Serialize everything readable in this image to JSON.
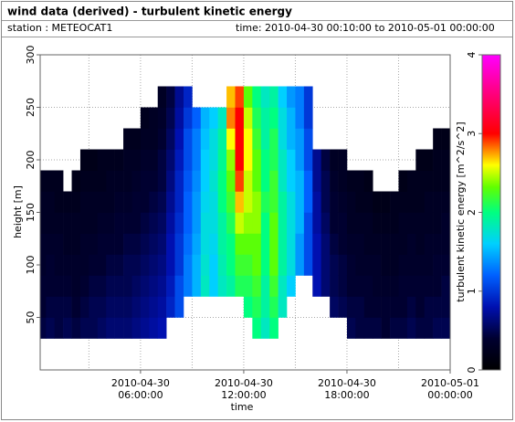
{
  "chart_data": {
    "type": "heatmap",
    "title": "wind data (derived) - turbulent kinetic energy",
    "station": "station : METEOCAT1",
    "period": "time: 2010-04-30 00:10:00 to 2010-05-01 00:00:00",
    "xlabel": "time",
    "ylabel": "height [m]",
    "zlabel": "turbulent kinetic energy [m^2/s^2]",
    "xlim": [
      "2010-04-30 00:10:00",
      "2010-05-01 00:00:00"
    ],
    "xticks": [
      "2010-04-30 06:00:00",
      "2010-04-30 12:00:00",
      "2010-04-30 18:00:00",
      "2010-05-01 00:00:00"
    ],
    "xminor_ticks": [
      "2010-04-30 03:00:00",
      "2010-04-30 09:00:00",
      "2010-04-30 15:00:00",
      "2010-04-30 21:00:00"
    ],
    "ylim": [
      0,
      300
    ],
    "yticks": [
      50,
      100,
      150,
      200,
      250,
      300
    ],
    "zlim": [
      0,
      4
    ],
    "zticks": [
      0,
      1,
      2,
      3,
      4
    ],
    "grid": true,
    "x_bins": [
      "2010-04-30 00:10:00",
      "2010-04-30 00:30:00",
      "2010-04-30 01:00:00",
      "2010-04-30 01:30:00",
      "2010-04-30 02:00:00",
      "2010-04-30 02:30:00",
      "2010-04-30 03:00:00",
      "2010-04-30 03:30:00",
      "2010-04-30 04:00:00",
      "2010-04-30 04:30:00",
      "2010-04-30 05:00:00",
      "2010-04-30 05:30:00",
      "2010-04-30 06:00:00",
      "2010-04-30 06:30:00",
      "2010-04-30 07:00:00",
      "2010-04-30 07:30:00",
      "2010-04-30 08:00:00",
      "2010-04-30 08:30:00",
      "2010-04-30 09:00:00",
      "2010-04-30 09:30:00",
      "2010-04-30 10:00:00",
      "2010-04-30 10:30:00",
      "2010-04-30 11:00:00",
      "2010-04-30 11:30:00",
      "2010-04-30 12:00:00",
      "2010-04-30 12:30:00",
      "2010-04-30 13:00:00",
      "2010-04-30 13:30:00",
      "2010-04-30 14:00:00",
      "2010-04-30 14:30:00",
      "2010-04-30 15:00:00",
      "2010-04-30 15:30:00",
      "2010-04-30 16:00:00",
      "2010-04-30 16:30:00",
      "2010-04-30 17:00:00",
      "2010-04-30 17:30:00",
      "2010-04-30 18:00:00",
      "2010-04-30 18:30:00",
      "2010-04-30 19:00:00",
      "2010-04-30 19:30:00",
      "2010-04-30 20:00:00",
      "2010-04-30 20:30:00",
      "2010-04-30 21:00:00",
      "2010-04-30 21:30:00",
      "2010-04-30 22:00:00",
      "2010-04-30 22:30:00",
      "2010-04-30 23:00:00",
      "2010-04-30 23:30:00",
      "2010-05-01 00:00:00"
    ],
    "y_bins": [
      30,
      50,
      70,
      90,
      110,
      130,
      150,
      170,
      190,
      210,
      230,
      250,
      270
    ],
    "z": [
      [
        0.45,
        0.4,
        0.4,
        0.35,
        0.35,
        0.3,
        0.3,
        0.25,
        null,
        null,
        null,
        null
      ],
      [
        0.5,
        0.45,
        0.4,
        0.4,
        0.35,
        0.3,
        0.3,
        0.25,
        null,
        null,
        null,
        null
      ],
      [
        0.45,
        0.45,
        0.4,
        0.35,
        0.35,
        0.3,
        0.25,
        0.25,
        null,
        null,
        null,
        null
      ],
      [
        0.5,
        0.45,
        0.4,
        0.35,
        0.3,
        0.3,
        0.25,
        null,
        null,
        null,
        null,
        null
      ],
      [
        0.45,
        0.4,
        0.35,
        0.35,
        0.3,
        0.3,
        0.25,
        0.2,
        null,
        null,
        null,
        null
      ],
      [
        0.5,
        0.45,
        0.4,
        0.35,
        0.35,
        0.3,
        0.3,
        0.25,
        0.2,
        null,
        null,
        null
      ],
      [
        0.5,
        0.5,
        0.45,
        0.4,
        0.35,
        0.3,
        0.3,
        0.25,
        0.2,
        null,
        null,
        null
      ],
      [
        0.55,
        0.5,
        0.45,
        0.4,
        0.4,
        0.35,
        0.3,
        0.25,
        0.25,
        null,
        null,
        null
      ],
      [
        0.6,
        0.55,
        0.5,
        0.45,
        0.4,
        0.35,
        0.3,
        0.3,
        0.25,
        null,
        null,
        null
      ],
      [
        0.6,
        0.55,
        0.5,
        0.45,
        0.4,
        0.4,
        0.35,
        0.3,
        0.25,
        null,
        null,
        null
      ],
      [
        0.6,
        0.55,
        0.5,
        0.5,
        0.45,
        0.4,
        0.35,
        0.3,
        0.3,
        0.25,
        null,
        null
      ],
      [
        0.65,
        0.6,
        0.55,
        0.5,
        0.45,
        0.4,
        0.4,
        0.35,
        0.3,
        0.25,
        null,
        null
      ],
      [
        0.7,
        0.65,
        0.6,
        0.55,
        0.5,
        0.45,
        0.4,
        0.4,
        0.35,
        0.3,
        0.25,
        null
      ],
      [
        0.75,
        0.7,
        0.65,
        0.6,
        0.55,
        0.5,
        0.45,
        0.4,
        0.35,
        0.3,
        0.3,
        null
      ],
      [
        0.8,
        0.75,
        0.7,
        0.65,
        0.6,
        0.55,
        0.5,
        0.45,
        0.45,
        0.4,
        0.35,
        0.3
      ],
      [
        null,
        0.9,
        0.85,
        0.8,
        0.8,
        0.75,
        0.7,
        0.65,
        0.6,
        0.55,
        0.5,
        0.45
      ],
      [
        null,
        1.1,
        1.1,
        1.0,
        1.0,
        0.95,
        0.9,
        0.9,
        0.85,
        0.8,
        0.75,
        0.7
      ],
      [
        null,
        null,
        1.3,
        1.3,
        1.25,
        1.2,
        1.2,
        1.15,
        1.1,
        1.1,
        1.0,
        0.9
      ],
      [
        null,
        null,
        1.5,
        1.5,
        1.45,
        1.4,
        1.4,
        1.35,
        1.3,
        1.3,
        1.2,
        null
      ],
      [
        null,
        null,
        1.8,
        1.75,
        1.7,
        1.7,
        1.65,
        1.6,
        1.6,
        1.55,
        1.5,
        null
      ],
      [
        null,
        null,
        1.6,
        1.6,
        1.65,
        1.7,
        1.7,
        1.75,
        1.7,
        1.7,
        1.6,
        null
      ],
      [
        null,
        null,
        1.8,
        1.85,
        1.9,
        1.9,
        2.0,
        2.0,
        1.95,
        1.9,
        1.8,
        null
      ],
      [
        null,
        null,
        1.9,
        2.0,
        2.0,
        2.1,
        2.2,
        2.3,
        2.4,
        2.6,
        2.8,
        2.7
      ],
      [
        null,
        null,
        2.1,
        2.2,
        2.3,
        2.5,
        2.7,
        2.9,
        3.0,
        3.0,
        3.0,
        2.9
      ],
      [
        null,
        2.0,
        2.1,
        2.2,
        2.3,
        2.4,
        2.5,
        2.5,
        2.6,
        2.6,
        2.5,
        2.3
      ],
      [
        2.0,
        2.1,
        2.2,
        2.3,
        2.3,
        2.4,
        2.4,
        2.3,
        2.3,
        2.2,
        2.1,
        2.0
      ],
      [
        1.8,
        1.9,
        1.9,
        2.0,
        2.0,
        2.0,
        2.1,
        2.0,
        2.0,
        1.9,
        1.9,
        1.8
      ],
      [
        2.0,
        2.1,
        2.2,
        2.3,
        2.3,
        2.3,
        2.2,
        2.2,
        2.1,
        2.1,
        2.0,
        1.9
      ],
      [
        null,
        1.8,
        1.8,
        1.9,
        1.9,
        1.9,
        1.9,
        1.8,
        1.8,
        1.7,
        1.7,
        1.6
      ],
      [
        null,
        null,
        1.6,
        1.7,
        1.7,
        1.7,
        1.7,
        1.6,
        1.6,
        1.5,
        1.5,
        1.4
      ],
      [
        null,
        null,
        null,
        1.4,
        1.4,
        1.5,
        1.5,
        1.5,
        1.4,
        1.4,
        1.3,
        1.3
      ],
      [
        null,
        null,
        null,
        1.1,
        1.1,
        1.1,
        1.2,
        1.2,
        1.1,
        1.1,
        1.0,
        1.0
      ],
      [
        null,
        null,
        0.8,
        0.8,
        0.8,
        0.75,
        0.75,
        0.7,
        0.7,
        null,
        null,
        null
      ],
      [
        null,
        null,
        0.6,
        0.6,
        0.6,
        0.55,
        0.5,
        0.5,
        0.45,
        null,
        null,
        null
      ],
      [
        null,
        0.55,
        0.5,
        0.5,
        0.45,
        0.4,
        0.4,
        0.35,
        0.3,
        null,
        null,
        null
      ],
      [
        null,
        0.5,
        0.45,
        0.45,
        0.4,
        0.4,
        0.35,
        0.3,
        0.3,
        null,
        null,
        null
      ],
      [
        0.5,
        0.45,
        0.4,
        0.4,
        0.35,
        0.3,
        0.3,
        0.25,
        null,
        null,
        null,
        null
      ],
      [
        0.45,
        0.45,
        0.4,
        0.35,
        0.35,
        0.3,
        0.25,
        0.25,
        null,
        null,
        null,
        null
      ],
      [
        0.45,
        0.4,
        0.4,
        0.35,
        0.3,
        0.3,
        0.25,
        0.2,
        null,
        null,
        null,
        null
      ],
      [
        0.45,
        0.4,
        0.35,
        0.35,
        0.3,
        0.25,
        0.2,
        null,
        null,
        null,
        null,
        null
      ],
      [
        0.4,
        0.4,
        0.35,
        0.3,
        0.3,
        0.25,
        0.2,
        null,
        null,
        null,
        null,
        null
      ],
      [
        0.45,
        0.4,
        0.35,
        0.3,
        0.3,
        0.25,
        0.25,
        null,
        null,
        null,
        null,
        null
      ],
      [
        0.45,
        0.4,
        0.4,
        0.35,
        0.3,
        0.3,
        0.25,
        0.2,
        null,
        null,
        null,
        null
      ],
      [
        0.5,
        0.45,
        0.4,
        0.35,
        0.35,
        0.3,
        0.25,
        0.25,
        null,
        null,
        null,
        null
      ],
      [
        0.45,
        0.4,
        0.4,
        0.35,
        0.3,
        0.3,
        0.25,
        0.25,
        0.2,
        null,
        null,
        null
      ],
      [
        0.45,
        0.45,
        0.4,
        0.35,
        0.35,
        0.3,
        0.3,
        0.25,
        0.2,
        null,
        null,
        null
      ],
      [
        0.5,
        0.45,
        0.4,
        0.4,
        0.35,
        0.3,
        0.3,
        0.25,
        0.25,
        0.2,
        null,
        null
      ],
      [
        0.5,
        0.45,
        0.45,
        0.4,
        0.35,
        0.35,
        0.3,
        0.25,
        0.25,
        0.2,
        null,
        null
      ]
    ]
  }
}
